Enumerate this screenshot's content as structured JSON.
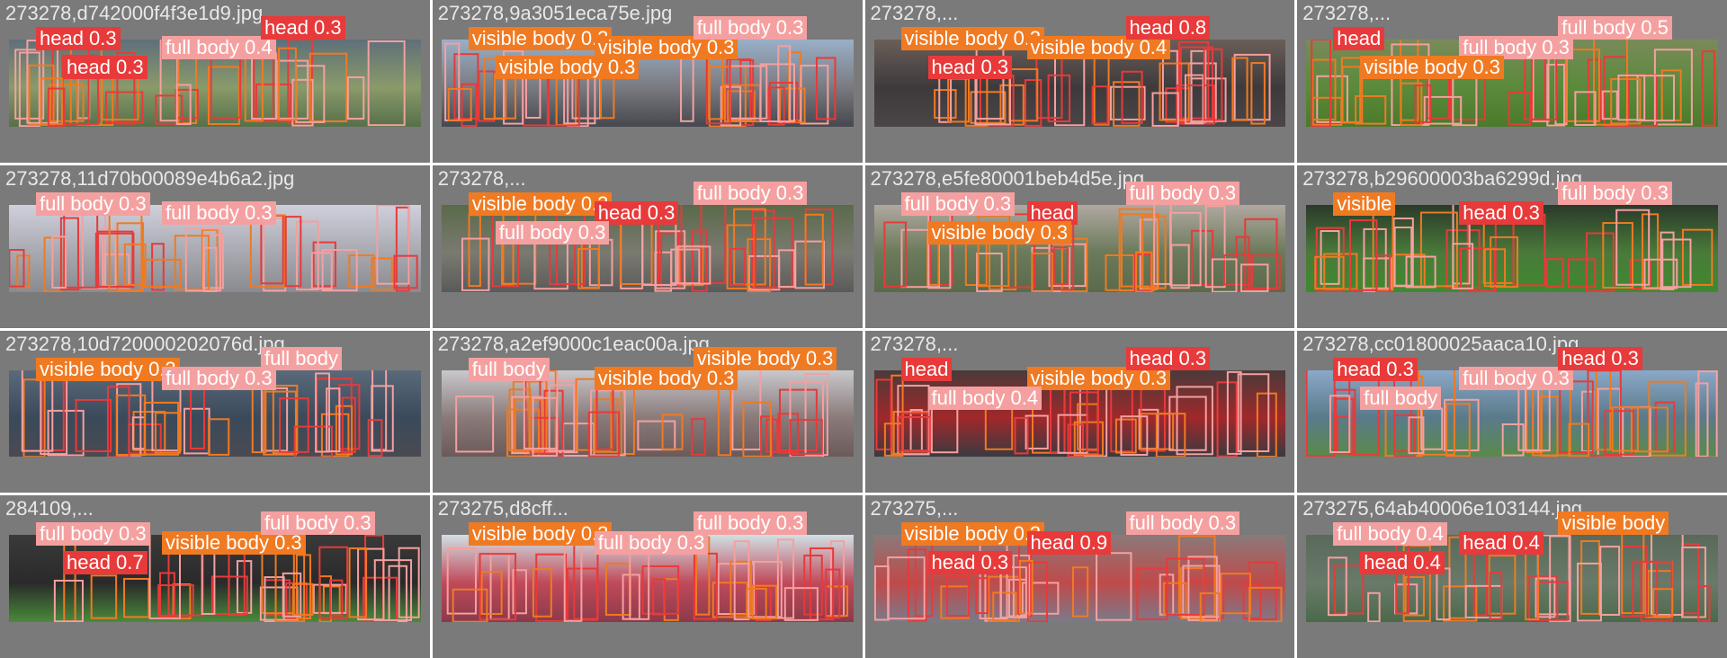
{
  "colors": {
    "tile_background": "#7a7a7a",
    "full_body": "#f5a0a0",
    "visible_body": "#f07a22",
    "head": "#e83a3a"
  },
  "tiles": [
    {
      "filename": "273278,d742000f4f3e1d9.jpg",
      "scene": [
        "#5f6f7a",
        "#8a9a6a",
        "#56704a"
      ],
      "labels": [
        {
          "text": "head 0.3",
          "cls": "head"
        },
        {
          "text": "full body 0.4",
          "cls": "full"
        },
        {
          "text": "head 0.3",
          "cls": "head"
        },
        {
          "text": "head 0.3",
          "cls": "head"
        }
      ]
    },
    {
      "filename": "273278,9a3051eca75e.jpg",
      "scene": [
        "#9ab0c8",
        "#7a7a80",
        "#45484e"
      ],
      "labels": [
        {
          "text": "visible body 0.3",
          "cls": "visible"
        },
        {
          "text": "visible body 0.3",
          "cls": "visible"
        },
        {
          "text": "full body 0.3",
          "cls": "full"
        },
        {
          "text": "visible body 0.3",
          "cls": "visible"
        }
      ]
    },
    {
      "filename": "273278,...",
      "scene": [
        "#6a5e58",
        "#3e3a3c",
        "#4a4648"
      ],
      "labels": [
        {
          "text": "visible body 0.3",
          "cls": "visible"
        },
        {
          "text": "visible body 0.4",
          "cls": "visible"
        },
        {
          "text": "head 0.8",
          "cls": "head"
        },
        {
          "text": "head 0.3",
          "cls": "head"
        }
      ]
    },
    {
      "filename": "273278,...",
      "scene": [
        "#7a8a5a",
        "#5a8a3a",
        "#4a7a2a"
      ],
      "labels": [
        {
          "text": "head",
          "cls": "head"
        },
        {
          "text": "full body 0.3",
          "cls": "full"
        },
        {
          "text": "full body 0.5",
          "cls": "full"
        },
        {
          "text": "visible body 0.3",
          "cls": "visible"
        }
      ]
    },
    {
      "filename": "273278,11d70b00089e4b6a2.jpg",
      "scene": [
        "#d0d0dc",
        "#a8a8b0",
        "#8a8a90"
      ],
      "labels": [
        {
          "text": "full body 0.3",
          "cls": "full"
        },
        {
          "text": "full body 0.3",
          "cls": "full"
        }
      ]
    },
    {
      "filename": "273278,...",
      "scene": [
        "#5a6a4a",
        "#7a7a70",
        "#5a5a5a"
      ],
      "labels": [
        {
          "text": "visible body 0.3",
          "cls": "visible"
        },
        {
          "text": "head 0.3",
          "cls": "head"
        },
        {
          "text": "full body 0.3",
          "cls": "full"
        },
        {
          "text": "full body 0.3",
          "cls": "full"
        }
      ]
    },
    {
      "filename": "273278,e5fe80001beb4d5e.jpg",
      "scene": [
        "#b0a8a0",
        "#6a7a5a",
        "#5a6a4a"
      ],
      "labels": [
        {
          "text": "full body 0.3",
          "cls": "full"
        },
        {
          "text": "head",
          "cls": "head"
        },
        {
          "text": "full body 0.3",
          "cls": "full"
        },
        {
          "text": "visible body 0.3",
          "cls": "visible"
        }
      ]
    },
    {
      "filename": "273278,b29600003ba6299d.jpg",
      "scene": [
        "#2a3a2a",
        "#4a7a3a",
        "#3f8a2f"
      ],
      "labels": [
        {
          "text": "visible",
          "cls": "visible"
        },
        {
          "text": "head 0.3",
          "cls": "head"
        },
        {
          "text": "full body 0.3",
          "cls": "full"
        }
      ]
    },
    {
      "filename": "273278,10d720000202076d.jpg",
      "scene": [
        "#5a6a7a",
        "#3a4a5a",
        "#4a4a52"
      ],
      "labels": [
        {
          "text": "visible body 0.3",
          "cls": "visible"
        },
        {
          "text": "full body 0.3",
          "cls": "full"
        },
        {
          "text": "full body",
          "cls": "full"
        }
      ]
    },
    {
      "filename": "273278,a2ef9000c1eac00a.jpg",
      "scene": [
        "#c8c8cc",
        "#8a7a7a",
        "#6a5a5a"
      ],
      "labels": [
        {
          "text": "full body",
          "cls": "full"
        },
        {
          "text": "visible body 0.3",
          "cls": "visible"
        },
        {
          "text": "visible body 0.3",
          "cls": "visible"
        }
      ]
    },
    {
      "filename": "273278,...",
      "scene": [
        "#4a3a3a",
        "#a0282a",
        "#3a3a40"
      ],
      "labels": [
        {
          "text": "head",
          "cls": "head"
        },
        {
          "text": "visible body 0.3",
          "cls": "visible"
        },
        {
          "text": "head 0.3",
          "cls": "head"
        },
        {
          "text": "full body 0.4",
          "cls": "full"
        }
      ]
    },
    {
      "filename": "273278,cc01800025aaca10.jpg",
      "scene": [
        "#8aa8c8",
        "#5a7a8a",
        "#5a8a4a"
      ],
      "labels": [
        {
          "text": "head 0.3",
          "cls": "head"
        },
        {
          "text": "full body 0.3",
          "cls": "full"
        },
        {
          "text": "head 0.3",
          "cls": "head"
        },
        {
          "text": "full body",
          "cls": "full"
        }
      ]
    },
    {
      "filename": "284109,...",
      "scene": [
        "#3a3a3a",
        "#2a2a2a",
        "#4a8a3a"
      ],
      "labels": [
        {
          "text": "full body 0.3",
          "cls": "full"
        },
        {
          "text": "visible body 0.3",
          "cls": "visible"
        },
        {
          "text": "full body 0.3",
          "cls": "full"
        },
        {
          "text": "head 0.7",
          "cls": "head"
        }
      ]
    },
    {
      "filename": "273275,d8cff...",
      "scene": [
        "#d0e0e4",
        "#c04a5a",
        "#8a3a4a"
      ],
      "labels": [
        {
          "text": "visible body 0.3",
          "cls": "visible"
        },
        {
          "text": "full body 0.3",
          "cls": "full"
        },
        {
          "text": "full body 0.3",
          "cls": "full"
        }
      ]
    },
    {
      "filename": "273275,...",
      "scene": [
        "#8a7a7a",
        "#c04a4a",
        "#7a7a8a"
      ],
      "labels": [
        {
          "text": "visible body 0.3",
          "cls": "visible"
        },
        {
          "text": "head 0.9",
          "cls": "head"
        },
        {
          "text": "full body 0.3",
          "cls": "full"
        },
        {
          "text": "head 0.3",
          "cls": "head"
        }
      ]
    },
    {
      "filename": "273275,64ab40006e103144.jpg",
      "scene": [
        "#5a6a5a",
        "#6a7a6a",
        "#4a6a4a"
      ],
      "labels": [
        {
          "text": "full body 0.4",
          "cls": "full"
        },
        {
          "text": "head 0.4",
          "cls": "head"
        },
        {
          "text": "visible body",
          "cls": "visible"
        },
        {
          "text": "head 0.4",
          "cls": "head"
        }
      ]
    }
  ]
}
